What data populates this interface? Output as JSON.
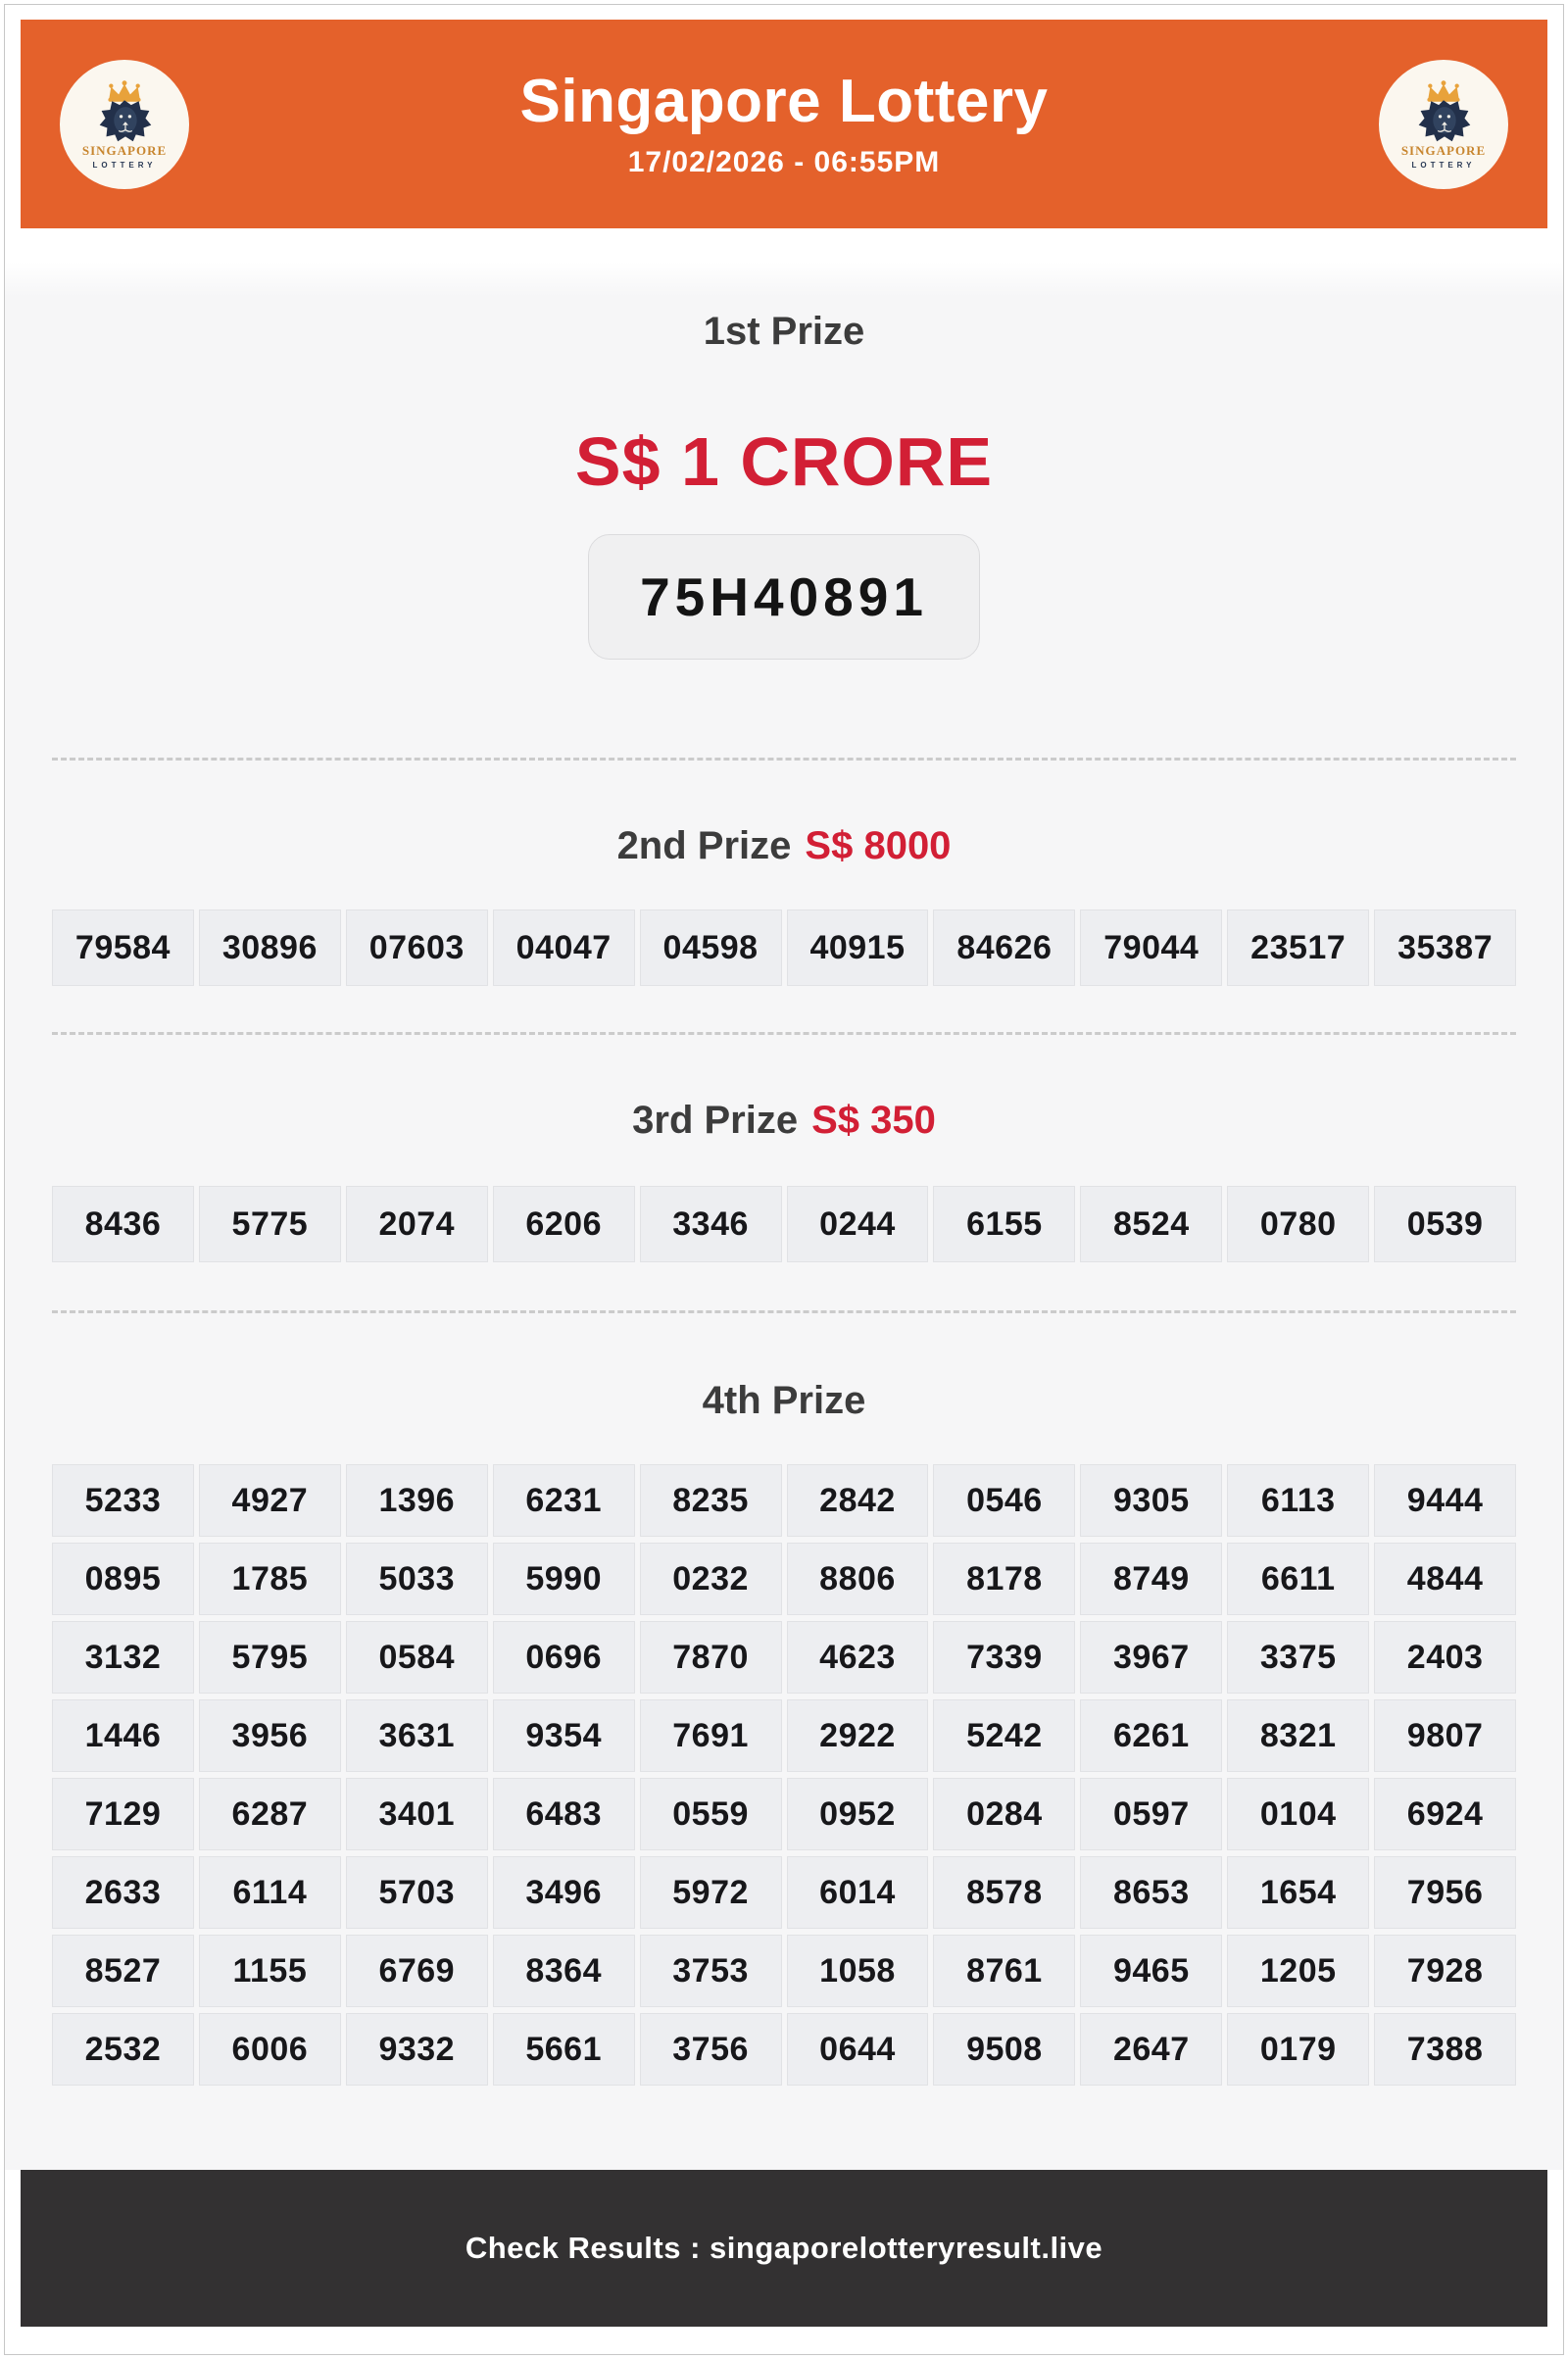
{
  "colors": {
    "brand_orange": "#E4612B",
    "prize_red": "#D21F35",
    "footer_bg": "#333132",
    "gold": "#E8A23B",
    "navy": "#22304A"
  },
  "header": {
    "title": "Singapore Lottery",
    "datetime": "17/02/2026 - 06:55PM",
    "logo": {
      "line1": "SINGAPORE",
      "line2": "LOTTERY"
    }
  },
  "prizes": {
    "first": {
      "label": "1st Prize",
      "amount": "S$ 1 CRORE",
      "number": "75H40891"
    },
    "second": {
      "label": "2nd Prize",
      "amount": "S$ 8000",
      "numbers": [
        "79584",
        "30896",
        "07603",
        "04047",
        "04598",
        "40915",
        "84626",
        "79044",
        "23517",
        "35387"
      ]
    },
    "third": {
      "label": "3rd Prize",
      "amount": "S$ 350",
      "numbers": [
        "8436",
        "5775",
        "2074",
        "6206",
        "3346",
        "0244",
        "6155",
        "8524",
        "0780",
        "0539"
      ]
    },
    "fourth": {
      "label": "4th Prize",
      "rows": [
        [
          "5233",
          "4927",
          "1396",
          "6231",
          "8235",
          "2842",
          "0546",
          "9305",
          "6113",
          "9444"
        ],
        [
          "0895",
          "1785",
          "5033",
          "5990",
          "0232",
          "8806",
          "8178",
          "8749",
          "6611",
          "4844"
        ],
        [
          "3132",
          "5795",
          "0584",
          "0696",
          "7870",
          "4623",
          "7339",
          "3967",
          "3375",
          "2403"
        ],
        [
          "1446",
          "3956",
          "3631",
          "9354",
          "7691",
          "2922",
          "5242",
          "6261",
          "8321",
          "9807"
        ],
        [
          "7129",
          "6287",
          "3401",
          "6483",
          "0559",
          "0952",
          "0284",
          "0597",
          "0104",
          "6924"
        ],
        [
          "2633",
          "6114",
          "5703",
          "3496",
          "5972",
          "6014",
          "8578",
          "8653",
          "1654",
          "7956"
        ],
        [
          "8527",
          "1155",
          "6769",
          "8364",
          "3753",
          "1058",
          "8761",
          "9465",
          "1205",
          "7928"
        ],
        [
          "2532",
          "6006",
          "9332",
          "5661",
          "3756",
          "0644",
          "9508",
          "2647",
          "0179",
          "7388"
        ]
      ]
    }
  },
  "footer": {
    "text": "Check Results : singaporelotteryresult.live"
  }
}
